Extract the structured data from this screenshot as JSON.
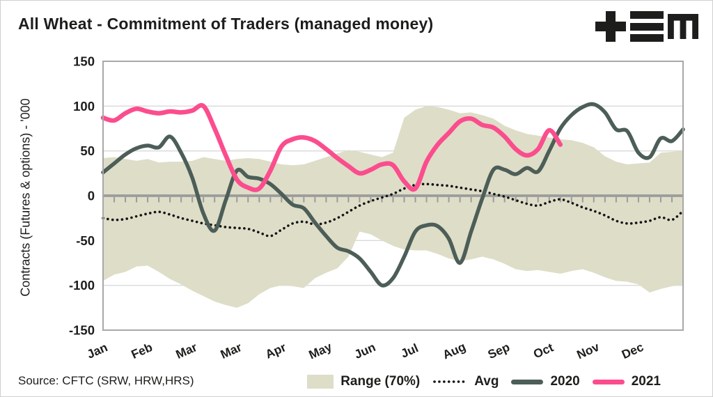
{
  "header": {
    "title": "All Wheat - Commitment of Traders (managed money)",
    "logo": "tem"
  },
  "source": {
    "text": "Source: CFTC (SRW, HRW,HRS)"
  },
  "chart_data": {
    "type": "line",
    "title": "All Wheat - Commitment of Traders (managed money)",
    "ylabel": "Contracts (Futures & options) - '000",
    "xlabel": "",
    "ylim": [
      -150,
      150
    ],
    "yticks": [
      150,
      100,
      50,
      0,
      -50,
      -100,
      -150
    ],
    "xticklabels": [
      "Jan",
      "Feb",
      "Mar",
      "Mar",
      "Apr",
      "May",
      "Jun",
      "Jul",
      "Aug",
      "Sep",
      "Oct",
      "Nov",
      "Dec"
    ],
    "x_unit": "weekly observations (53 weeks)",
    "grid": "horizontal gridlines at ±50 and ±100; heavy zero axis with weekly tick marks",
    "legend_position": "bottom",
    "colors": {
      "band": "#deddc8",
      "avg": "#141414",
      "y2020": "#4c5e57",
      "y2021": "#fb4d8d",
      "axis": "#9b9b9b",
      "frame": "#a8a8a8",
      "gridline": "#d9d9d9"
    },
    "band": {
      "name": "Range (70%)",
      "color": "#deddc8",
      "upper": [
        42,
        43,
        41,
        39,
        41,
        37,
        38,
        38,
        39,
        43,
        41,
        39,
        41,
        42,
        41,
        38,
        35,
        34,
        35,
        39,
        43,
        47,
        51,
        49,
        46,
        43,
        48,
        87,
        96,
        100,
        99,
        96,
        92,
        93,
        90,
        86,
        78,
        73,
        69,
        67,
        65,
        63,
        62,
        59,
        54,
        44,
        38,
        35,
        36,
        37,
        48,
        49,
        50
      ],
      "lower": [
        -95,
        -88,
        -85,
        -79,
        -78,
        -85,
        -93,
        -99,
        -106,
        -112,
        -118,
        -122,
        -125,
        -120,
        -110,
        -103,
        -100,
        -101,
        -103,
        -92,
        -86,
        -81,
        -68,
        -40,
        -43,
        -50,
        -56,
        -60,
        -61,
        -61,
        -65,
        -70,
        -73,
        -71,
        -68,
        -71,
        -76,
        -82,
        -84,
        -83,
        -85,
        -87,
        -84,
        -82,
        -86,
        -91,
        -95,
        -96,
        -99,
        -108,
        -104,
        -101,
        -99
      ]
    },
    "series": [
      {
        "name": "Avg",
        "style": "dotted",
        "color": "#141414",
        "values": [
          -25,
          -27,
          -26,
          -23,
          -20,
          -18,
          -21,
          -25,
          -28,
          -31,
          -33,
          -35,
          -36,
          -37,
          -41,
          -45,
          -38,
          -31,
          -29,
          -32,
          -30,
          -25,
          -18,
          -11,
          -6,
          -2,
          2,
          8,
          12,
          13,
          12,
          11,
          9,
          7,
          5,
          2,
          -1,
          -5,
          -9,
          -11,
          -7,
          -4,
          -8,
          -13,
          -17,
          -22,
          -28,
          -31,
          -30,
          -28,
          -24,
          -27,
          -17
        ]
      },
      {
        "name": "2020",
        "style": "solid",
        "color": "#4c5e57",
        "values": [
          26,
          36,
          46,
          53,
          56,
          54,
          66,
          48,
          20,
          -20,
          -39,
          -5,
          28,
          21,
          19,
          13,
          2,
          -10,
          -14,
          -30,
          -45,
          -58,
          -62,
          -70,
          -85,
          -100,
          -92,
          -68,
          -40,
          -33,
          -34,
          -48,
          -75,
          -40,
          -3,
          29,
          29,
          24,
          31,
          27,
          50,
          75,
          90,
          99,
          102,
          93,
          74,
          72,
          48,
          43,
          64,
          61,
          74
        ]
      },
      {
        "name": "2021",
        "style": "solid",
        "color": "#fb4d8d",
        "values": [
          87,
          84,
          92,
          97,
          94,
          92,
          94,
          93,
          95,
          100,
          75,
          45,
          18,
          9,
          8,
          28,
          55,
          63,
          65,
          61,
          52,
          42,
          33,
          25,
          29,
          35,
          34,
          16,
          8,
          38,
          57,
          70,
          83,
          86,
          79,
          76,
          66,
          52,
          45,
          52,
          73,
          57
        ]
      }
    ]
  }
}
